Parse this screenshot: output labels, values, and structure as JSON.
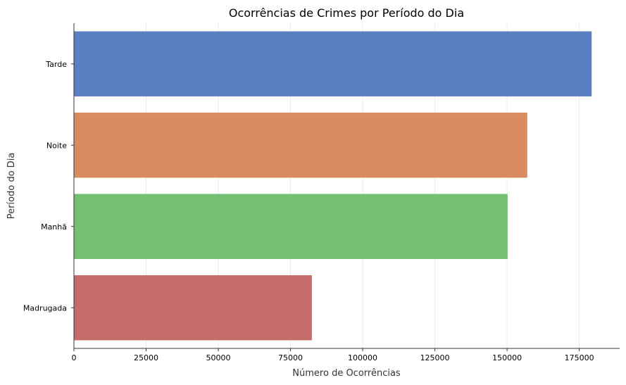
{
  "chart_data": {
    "type": "bar",
    "orientation": "horizontal",
    "title": "Ocorrências de Crimes por Período do Dia",
    "xlabel": "Número de Ocorrências",
    "ylabel": "Período do Dia",
    "categories": [
      "Tarde",
      "Noite",
      "Manhã",
      "Madrugada"
    ],
    "values": [
      179300,
      157000,
      150200,
      82400
    ],
    "colors": [
      "#5a7fc2",
      "#d98b5f",
      "#75bf72",
      "#c46c6c"
    ],
    "xlim": [
      0,
      189000
    ],
    "xticks": [
      0,
      25000,
      50000,
      75000,
      100000,
      125000,
      150000,
      175000
    ],
    "xtick_labels": [
      "0",
      "25000",
      "50000",
      "75000",
      "100000",
      "125000",
      "150000",
      "175000"
    ],
    "grid": "vertical",
    "legend": "none"
  }
}
